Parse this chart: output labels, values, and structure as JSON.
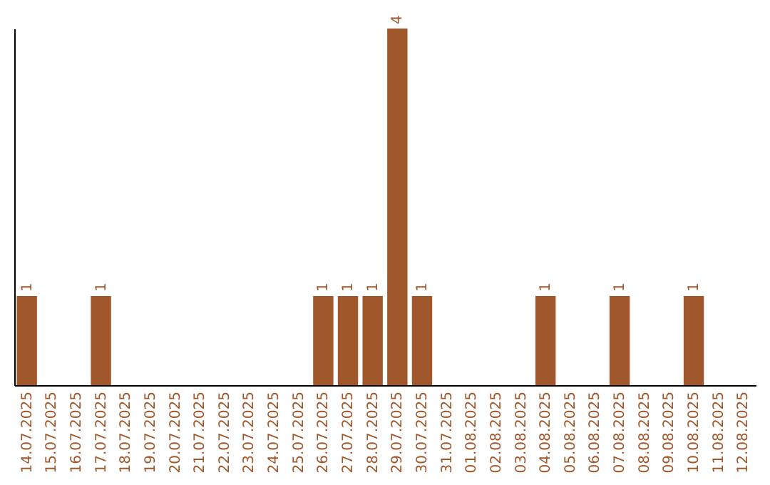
{
  "chart_data": {
    "type": "bar",
    "categories": [
      "14.07.2025",
      "15.07.2025",
      "16.07.2025",
      "17.07.2025",
      "18.07.2025",
      "19.07.2025",
      "20.07.2025",
      "21.07.2025",
      "22.07.2025",
      "23.07.2025",
      "24.07.2025",
      "25.07.2025",
      "26.07.2025",
      "27.07.2025",
      "28.07.2025",
      "29.07.2025",
      "30.07.2025",
      "31.07.2025",
      "01.08.2025",
      "02.08.2025",
      "03.08.2025",
      "04.08.2025",
      "05.08.2025",
      "06.08.2025",
      "07.08.2025",
      "08.08.2025",
      "09.08.2025",
      "10.08.2025",
      "11.08.2025",
      "12.08.2025"
    ],
    "values": [
      1,
      0,
      0,
      1,
      0,
      0,
      0,
      0,
      0,
      0,
      0,
      0,
      1,
      1,
      1,
      4,
      1,
      0,
      0,
      0,
      0,
      1,
      0,
      0,
      1,
      0,
      0,
      1,
      0,
      0
    ],
    "value_labels": [
      "1",
      null,
      null,
      "1",
      null,
      null,
      null,
      null,
      null,
      null,
      null,
      null,
      "1",
      "1",
      "1",
      "4",
      "1",
      null,
      null,
      null,
      null,
      "1",
      null,
      null,
      "1",
      null,
      null,
      "1",
      null,
      null
    ],
    "color": "#a0572b",
    "grid": false,
    "tick_labels": "x"
  }
}
